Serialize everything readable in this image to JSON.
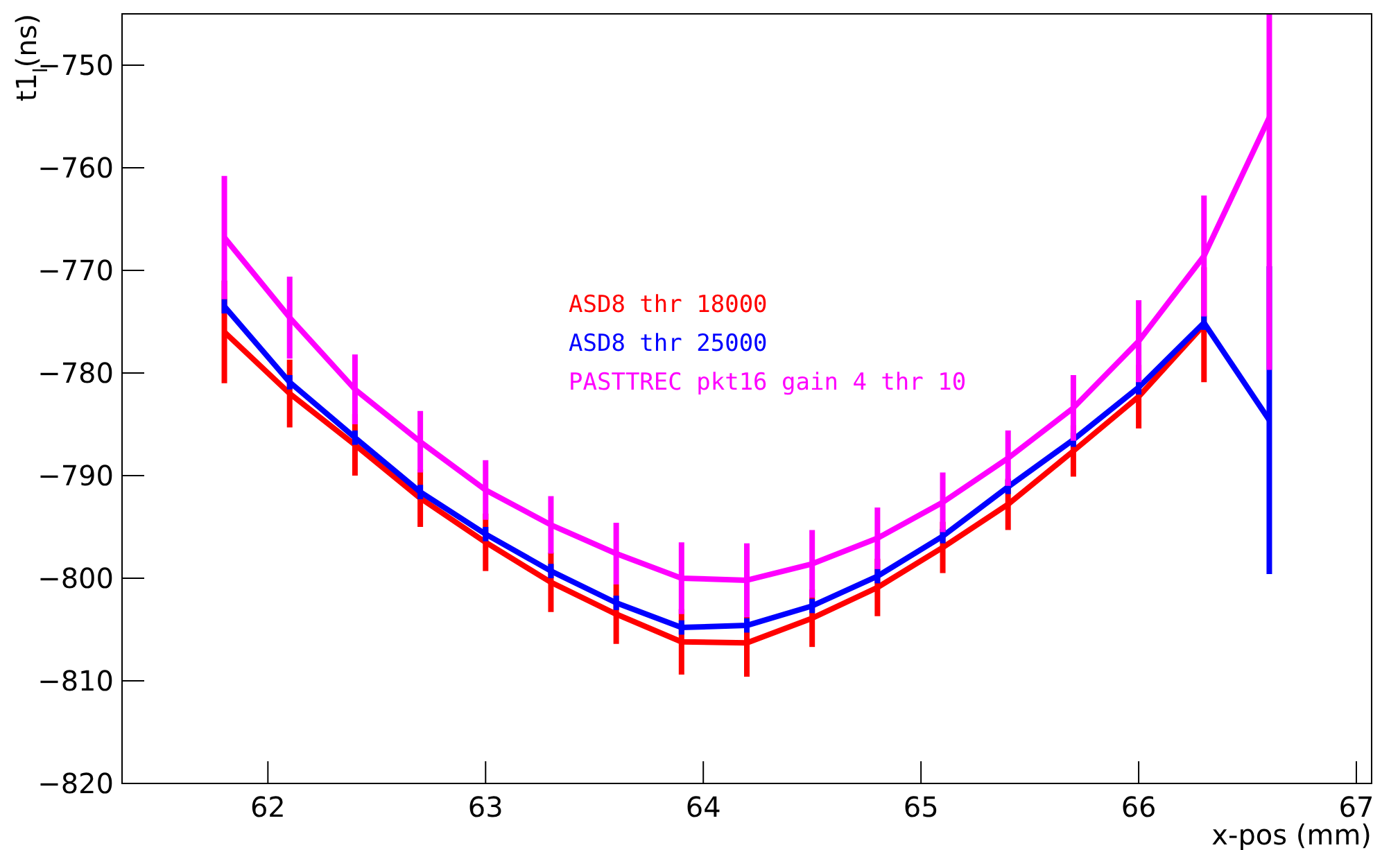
{
  "chart_data": {
    "type": "line",
    "xlabel": "x-pos (mm)",
    "ylabel": "t1$_{l}$(ns)",
    "xlim": [
      61.33,
      67.07
    ],
    "xticks": [
      62,
      63,
      64,
      65,
      66,
      67
    ],
    "ylim": [
      -820,
      -745
    ],
    "yticks": [
      -820,
      -810,
      -800,
      -790,
      -780,
      -770,
      -760,
      -750
    ],
    "x": [
      61.8,
      62.1,
      62.4,
      62.7,
      63.0,
      63.3,
      63.6,
      63.9,
      64.2,
      64.5,
      64.8,
      65.1,
      65.4,
      65.7,
      66.0,
      66.3,
      66.6
    ],
    "legend": "top",
    "grid": false,
    "marker": "none",
    "line_style": "solid",
    "series": [
      {
        "name": "ASD8 thr 18000",
        "color": "#ff0000",
        "values": [
          -776.0,
          -782.0,
          -787.0,
          -792.2,
          -796.5,
          -800.4,
          -803.5,
          -806.2,
          -806.3,
          -803.9,
          -800.9,
          -797.0,
          -792.8,
          -787.6,
          -782.3,
          -775.3,
          null
        ],
        "errors": [
          5,
          3.3,
          3,
          2.8,
          2.8,
          2.9,
          2.9,
          3.2,
          3.3,
          2.8,
          2.8,
          2.5,
          2.5,
          2.5,
          3.1,
          5.6,
          null
        ]
      },
      {
        "name": "ASD8 thr 25000",
        "color": "#0000ff",
        "values": [
          -773.5,
          -780.9,
          -786.3,
          -791.6,
          -795.7,
          -799.3,
          -802.4,
          -804.8,
          -804.6,
          -802.7,
          -799.8,
          -795.9,
          -791.1,
          -786.5,
          -781.4,
          -775.1,
          -784.6
        ],
        "errors": [
          0.7,
          0.7,
          0.7,
          0.7,
          0.7,
          0.7,
          0.7,
          0.7,
          0.7,
          0.7,
          0.7,
          0.7,
          0.7,
          0.7,
          0.7,
          0.7,
          15
        ]
      },
      {
        "name": "PASTTREC pkt16 gain 4 thr 10",
        "color": "#ff00ff",
        "values": [
          -766.8,
          -774.6,
          -781.6,
          -786.7,
          -791.4,
          -794.8,
          -797.6,
          -800.0,
          -800.2,
          -798.6,
          -796.1,
          -792.6,
          -788.3,
          -783.4,
          -776.9,
          -768.6,
          -755.1
        ],
        "errors": [
          6,
          4,
          3.4,
          3,
          2.9,
          2.8,
          3,
          3.5,
          3.6,
          3.3,
          3,
          2.9,
          2.7,
          3.2,
          4,
          5.9,
          [
            -779.7,
            -745
          ]
        ]
      }
    ]
  }
}
